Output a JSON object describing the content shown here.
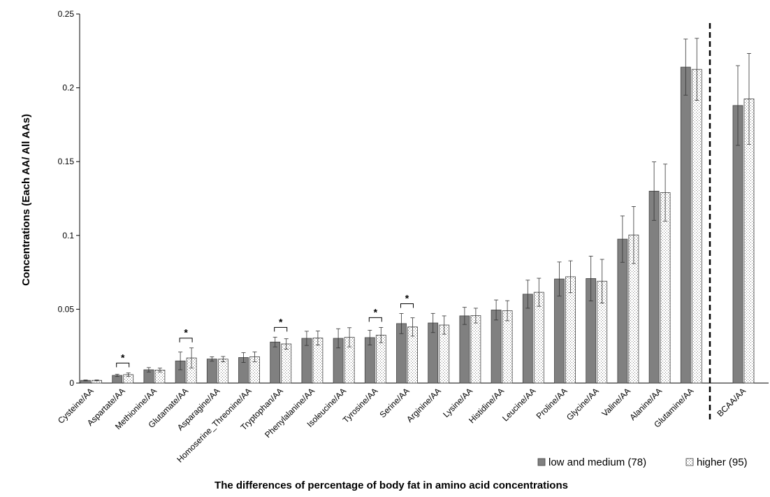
{
  "chart_data": {
    "type": "bar",
    "xlabel": "The differences of percentage of body fat in amino acid concentrations",
    "ylabel": "Concentrations (Each AA/ All AAs)",
    "ylim": [
      0,
      0.25
    ],
    "yticks": [
      "0",
      "0.05",
      "0.1",
      "0.15",
      "0.2",
      "0.25"
    ],
    "ytick_values": [
      0,
      0.05,
      0.1,
      0.15,
      0.2,
      0.25
    ],
    "grid": false,
    "legend_position": "bottom-right",
    "categories": [
      "Cysteine/AA",
      "Aspartate/AA",
      "Methionine/AA",
      "Glutamate/AA",
      "Asparagine/AA",
      "Homoserine_Threonine/AA",
      "Tryptophan/AA",
      "Phenylalanine/AA",
      "Isoleucine/AA",
      "Tyrosine/AA",
      "Serine/AA",
      "Arginine/AA",
      "Lysine/AA",
      "Histidine/AA",
      "Leucine/AA",
      "Proline/AA",
      "Glycine/AA",
      "Valine/AA",
      "Alanine/AA",
      "Glutamine/AA",
      "BCAA/AA"
    ],
    "series": [
      {
        "name": "low and medium (78)",
        "color": "#808080",
        "pattern": "solid",
        "values": [
          0.0018,
          0.0052,
          0.009,
          0.015,
          0.0163,
          0.0173,
          0.0278,
          0.0303,
          0.0303,
          0.0308,
          0.0403,
          0.0407,
          0.0455,
          0.0495,
          0.0602,
          0.0705,
          0.0708,
          0.0975,
          0.13,
          0.214,
          0.188
        ],
        "errors": [
          0.0003,
          0.0008,
          0.0015,
          0.006,
          0.0015,
          0.0033,
          0.0033,
          0.0048,
          0.0065,
          0.005,
          0.0068,
          0.0065,
          0.0058,
          0.0068,
          0.0095,
          0.0115,
          0.0152,
          0.0157,
          0.0198,
          0.019,
          0.027
        ]
      },
      {
        "name": "higher (95)",
        "color": "#ffffff",
        "pattern": "dotted",
        "values": [
          0.0018,
          0.0057,
          0.0088,
          0.017,
          0.0162,
          0.0178,
          0.0265,
          0.0305,
          0.031,
          0.0325,
          0.038,
          0.0393,
          0.0457,
          0.049,
          0.0615,
          0.072,
          0.069,
          0.1003,
          0.129,
          0.2125,
          0.1925
        ],
        "errors": [
          0.0003,
          0.0012,
          0.0013,
          0.0068,
          0.0018,
          0.0033,
          0.0035,
          0.0048,
          0.0065,
          0.0052,
          0.0062,
          0.0062,
          0.005,
          0.0068,
          0.0095,
          0.0108,
          0.0148,
          0.0193,
          0.0193,
          0.021,
          0.0308
        ]
      }
    ],
    "significance": [
      {
        "category": "Aspartate/AA",
        "label": "*"
      },
      {
        "category": "Glutamate/AA",
        "label": "*"
      },
      {
        "category": "Tryptophan/AA",
        "label": "*"
      },
      {
        "category": "Tyrosine/AA",
        "label": "*"
      },
      {
        "category": "Serine/AA",
        "label": "*"
      }
    ],
    "separator_before": "BCAA/AA"
  }
}
